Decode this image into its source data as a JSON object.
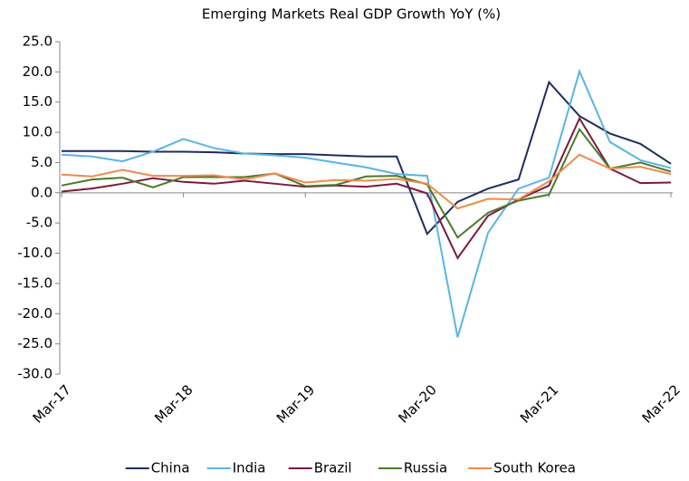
{
  "chart_data": {
    "type": "line",
    "title": "Emerging Markets Real GDP Growth YoY (%)",
    "categories": [
      "Mar-17",
      null,
      null,
      null,
      "Mar-18",
      null,
      null,
      null,
      "Mar-19",
      null,
      null,
      null,
      "Mar-20",
      null,
      null,
      null,
      "Mar-21",
      null,
      null,
      null,
      "Mar-22"
    ],
    "series": [
      {
        "name": "China",
        "color": "#1f2d5c",
        "values": [
          6.9,
          6.9,
          6.9,
          6.8,
          6.8,
          6.7,
          6.5,
          6.4,
          6.4,
          6.2,
          6.0,
          6.0,
          -6.8,
          -1.5,
          0.7,
          2.2,
          18.3,
          12.7,
          9.8,
          8.1,
          4.8
        ]
      },
      {
        "name": "India",
        "color": "#5bb4e5",
        "values": [
          6.3,
          6.0,
          5.2,
          6.8,
          8.9,
          7.4,
          6.5,
          6.2,
          5.8,
          5.0,
          4.2,
          3.1,
          2.8,
          -23.9,
          -6.6,
          0.7,
          2.5,
          20.1,
          8.4,
          5.4,
          4.1
        ]
      },
      {
        "name": "Brazil",
        "color": "#7b1a3e",
        "values": [
          0.2,
          0.7,
          1.5,
          2.4,
          1.8,
          1.5,
          2.0,
          1.5,
          1.0,
          1.2,
          1.0,
          1.5,
          -0.1,
          -10.8,
          -3.8,
          -1.1,
          1.2,
          12.3,
          4.0,
          1.6,
          1.7
        ]
      },
      {
        "name": "Russia",
        "color": "#4a7a2a",
        "values": [
          1.2,
          2.2,
          2.5,
          0.9,
          2.6,
          2.6,
          2.6,
          3.2,
          1.1,
          1.3,
          2.7,
          2.8,
          1.4,
          -7.4,
          -3.3,
          -1.3,
          -0.3,
          10.5,
          4.0,
          5.0,
          3.5
        ]
      },
      {
        "name": "South Korea",
        "color": "#f08a4b",
        "values": [
          3.0,
          2.7,
          3.8,
          2.8,
          2.8,
          2.9,
          2.2,
          3.2,
          1.7,
          2.1,
          2.0,
          2.3,
          1.5,
          -2.6,
          -1.0,
          -1.1,
          1.9,
          6.3,
          4.0,
          4.3,
          3.1
        ]
      }
    ],
    "ylim": [
      -30,
      25
    ],
    "yticks": [
      {
        "value": -30,
        "label": "-30.0"
      },
      {
        "value": -25,
        "label": "-25.0"
      },
      {
        "value": -20,
        "label": "-20.0"
      },
      {
        "value": -15,
        "label": "-15.0"
      },
      {
        "value": -10,
        "label": "-10.0"
      },
      {
        "value": -5,
        "label": "-5.0"
      },
      {
        "value": 0,
        "label": "0.0"
      },
      {
        "value": 5,
        "label": "5.0"
      },
      {
        "value": 10,
        "label": "10.0"
      },
      {
        "value": 15,
        "label": "15.0"
      },
      {
        "value": 20,
        "label": "20.0"
      },
      {
        "value": 25,
        "label": "25.0"
      }
    ],
    "grid": false,
    "legend": "bottom"
  }
}
